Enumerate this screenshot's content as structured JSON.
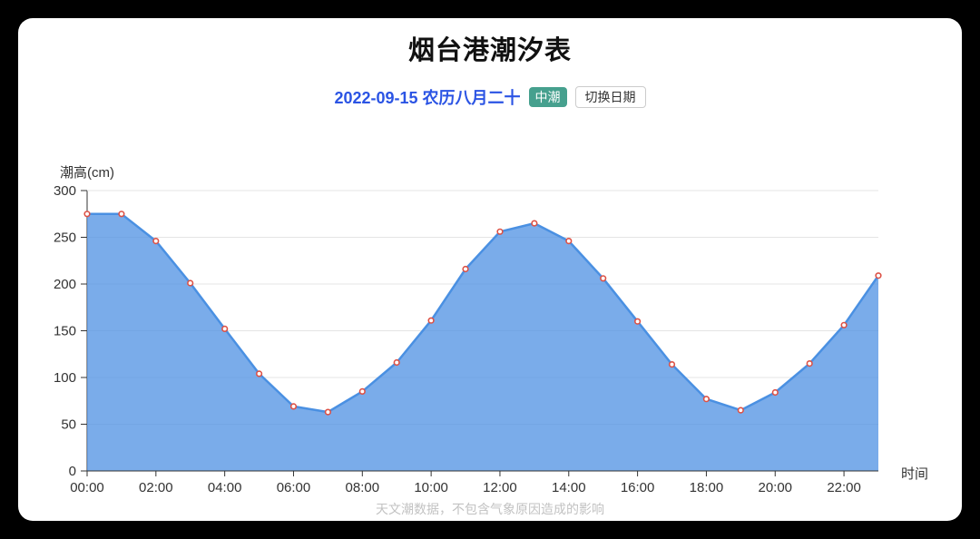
{
  "page": {
    "title": "烟台港潮汐表",
    "date_label": "2022-09-15 农历八月二十",
    "tide_badge": "中潮",
    "switch_date_button": "切换日期",
    "footer_note": "天文潮数据，不包含气象原因造成的影响"
  },
  "colors": {
    "background": "#000000",
    "card": "#ffffff",
    "date_text": "#2b54e4",
    "badge_bg": "#46a08e",
    "badge_text": "#ffffff",
    "line": "#4a90e2",
    "area_fill": "rgba(84,149,228,0.78)",
    "marker_stroke": "#dd5145",
    "marker_fill": "#ffffff",
    "grid": "#e4e4e4",
    "axis": "#333333",
    "axis_text": "#333333"
  },
  "chart_data": {
    "type": "area",
    "title": "烟台港潮汐表",
    "xlabel": "时间",
    "ylabel": "潮高(cm)",
    "ylim": [
      0,
      300
    ],
    "y_ticks": [
      0,
      50,
      100,
      150,
      200,
      250,
      300
    ],
    "grid": true,
    "legend": "none",
    "x": [
      "00:00",
      "01:00",
      "02:00",
      "03:00",
      "04:00",
      "05:00",
      "06:00",
      "07:00",
      "08:00",
      "09:00",
      "10:00",
      "11:00",
      "12:00",
      "13:00",
      "14:00",
      "15:00",
      "16:00",
      "17:00",
      "18:00",
      "19:00",
      "20:00",
      "21:00",
      "22:00",
      "23:00"
    ],
    "x_tick_labels": [
      "00:00",
      "02:00",
      "04:00",
      "06:00",
      "08:00",
      "10:00",
      "12:00",
      "14:00",
      "16:00",
      "18:00",
      "20:00",
      "22:00"
    ],
    "values": [
      275,
      275,
      246,
      201,
      152,
      104,
      69,
      63,
      85,
      116,
      161,
      216,
      256,
      265,
      246,
      206,
      160,
      114,
      77,
      65,
      84,
      115,
      156,
      209
    ]
  }
}
